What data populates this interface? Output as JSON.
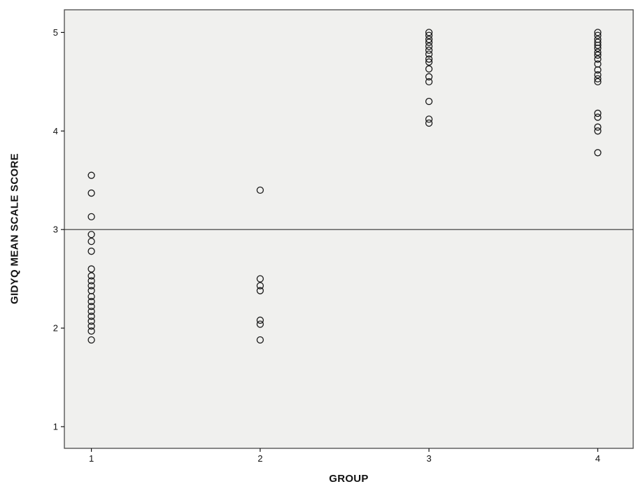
{
  "chart_data": {
    "type": "scatter",
    "title": "",
    "xlabel": "GROUP",
    "ylabel": "GIDYQ MEAN SCALE SCORE",
    "xlim": [
      0.84,
      4.21
    ],
    "ylim": [
      0.78,
      5.23
    ],
    "x_ticks": [
      1,
      2,
      3,
      4
    ],
    "y_ticks": [
      1,
      2,
      3,
      4,
      5
    ],
    "reference_line_y": 3,
    "grid": false,
    "legend": "none",
    "marker": "open-circle",
    "colors": {
      "plot_bg": "#f0f0ee",
      "frame": "#4a4a4a",
      "point_stroke": "#1a1a1a",
      "reference_line": "#333333",
      "tick": "#111111"
    },
    "series": [
      {
        "name": "Group 1",
        "x": 1,
        "values": [
          3.55,
          3.37,
          3.13,
          2.95,
          2.88,
          2.78,
          2.6,
          2.53,
          2.48,
          2.43,
          2.38,
          2.32,
          2.27,
          2.22,
          2.17,
          2.12,
          2.07,
          2.02,
          1.97,
          1.88
        ]
      },
      {
        "name": "Group 2",
        "x": 2,
        "values": [
          3.4,
          2.5,
          2.43,
          2.38,
          2.08,
          2.04,
          1.88
        ]
      },
      {
        "name": "Group 3",
        "x": 3,
        "values": [
          5.0,
          4.97,
          4.93,
          4.9,
          4.86,
          4.82,
          4.78,
          4.73,
          4.7,
          4.63,
          4.55,
          4.5,
          4.3,
          4.12,
          4.08
        ]
      },
      {
        "name": "Group 4",
        "x": 4,
        "values": [
          5.0,
          4.97,
          4.93,
          4.9,
          4.87,
          4.84,
          4.8,
          4.77,
          4.73,
          4.68,
          4.62,
          4.57,
          4.53,
          4.5,
          4.18,
          4.14,
          4.04,
          4.0,
          3.78
        ]
      }
    ]
  }
}
